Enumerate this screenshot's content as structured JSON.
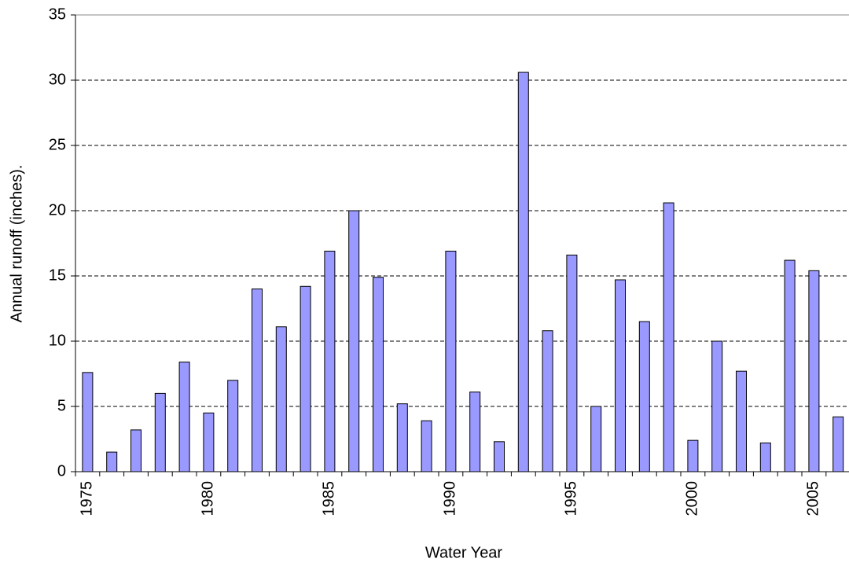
{
  "chart_data": {
    "type": "bar",
    "x_label": "Water Year",
    "y_label": "Annual runoff (inches).",
    "categories": [
      "1975",
      null,
      null,
      null,
      null,
      "1980",
      null,
      null,
      null,
      null,
      "1985",
      null,
      null,
      null,
      null,
      "1990",
      null,
      null,
      null,
      null,
      "1995",
      null,
      null,
      null,
      null,
      "2000",
      null,
      null,
      null,
      null,
      "2005",
      null
    ],
    "values": [
      7.6,
      1.5,
      3.2,
      6.0,
      8.4,
      4.5,
      7.0,
      14.0,
      11.1,
      14.2,
      16.9,
      20.0,
      14.9,
      5.2,
      3.9,
      16.9,
      6.1,
      2.3,
      30.6,
      10.8,
      16.6,
      5.0,
      14.7,
      11.5,
      20.6,
      2.4,
      10.0,
      7.7,
      2.2,
      16.2,
      15.4,
      4.2
    ],
    "color": "#9999ff",
    "ylim": [
      0,
      35
    ],
    "yticks": [
      0,
      5,
      10,
      15,
      20,
      25,
      30,
      35
    ],
    "grid": true
  }
}
